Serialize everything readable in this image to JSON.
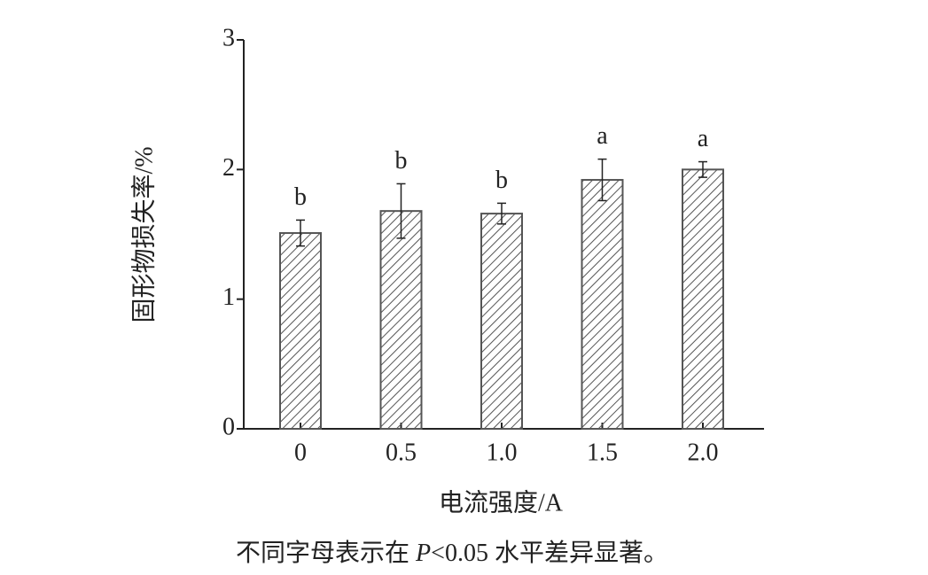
{
  "chart_data": {
    "type": "bar",
    "categories": [
      "0",
      "0.5",
      "1.0",
      "1.5",
      "2.0"
    ],
    "values": [
      1.51,
      1.68,
      1.66,
      1.92,
      2.0
    ],
    "errors": [
      0.1,
      0.21,
      0.08,
      0.16,
      0.06
    ],
    "significance_letters": [
      "b",
      "b",
      "b",
      "a",
      "a"
    ],
    "color": "#555555",
    "hatch": "diagonal",
    "ylim": [
      0,
      3
    ],
    "yticks": [
      0,
      1,
      2,
      3
    ],
    "xlabel": "电流强度/A",
    "ylabel": "固形物损失率/%",
    "note_parts": [
      "不同字母表示在 ",
      "P",
      "<0.05 水平差异显著。"
    ]
  }
}
